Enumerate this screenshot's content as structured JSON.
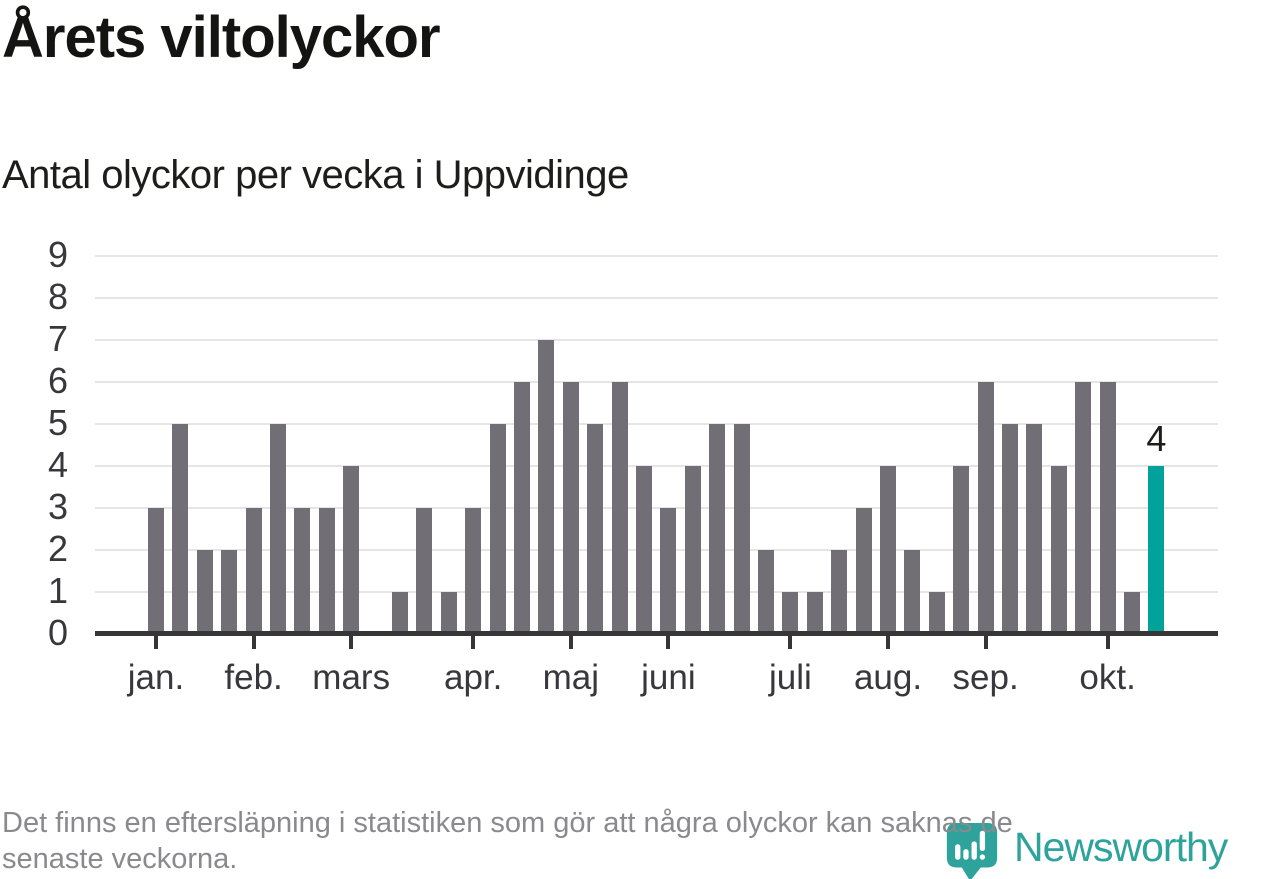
{
  "header": {
    "title": "Årets viltolyckor",
    "subtitle": "Antal olyckor per vecka i Uppvidinge"
  },
  "chart_data": {
    "type": "bar",
    "title": "Årets viltolyckor",
    "subtitle": "Antal olyckor per vecka i Uppvidinge",
    "ylabel": "",
    "xlabel": "",
    "n_bars": 42,
    "values": [
      3,
      5,
      2,
      2,
      3,
      5,
      3,
      3,
      4,
      0,
      1,
      3,
      1,
      3,
      5,
      6,
      7,
      6,
      5,
      6,
      4,
      3,
      4,
      5,
      5,
      2,
      1,
      1,
      2,
      3,
      4,
      2,
      1,
      4,
      6,
      5,
      5,
      4,
      6,
      6,
      1,
      4
    ],
    "bar_color": "#716e76",
    "highlight": {
      "index": 41,
      "label": "4",
      "color": "#00a29a"
    },
    "y_axis": {
      "min": 0,
      "max": 9,
      "ticks": [
        0,
        1,
        2,
        3,
        4,
        5,
        6,
        7,
        8,
        9
      ],
      "grid": true
    },
    "x_axis": {
      "month_ticks": [
        {
          "label": "jan.",
          "bar_index": 0
        },
        {
          "label": "feb.",
          "bar_index": 4
        },
        {
          "label": "mars",
          "bar_index": 8
        },
        {
          "label": "apr.",
          "bar_index": 13
        },
        {
          "label": "maj",
          "bar_index": 17
        },
        {
          "label": "juni",
          "bar_index": 21
        },
        {
          "label": "juli",
          "bar_index": 26
        },
        {
          "label": "aug.",
          "bar_index": 30
        },
        {
          "label": "sep.",
          "bar_index": 34
        },
        {
          "label": "okt.",
          "bar_index": 39
        }
      ]
    },
    "legend": "none"
  },
  "footer": {
    "line1": "Det finns en eftersläpning i statistiken som gör att några olyckor kan saknas de",
    "line2": "senaste veckorna."
  },
  "logo": {
    "text": "Newsworthy",
    "color": "#2ea39b",
    "icon": "newsworthy-pin-icon"
  }
}
